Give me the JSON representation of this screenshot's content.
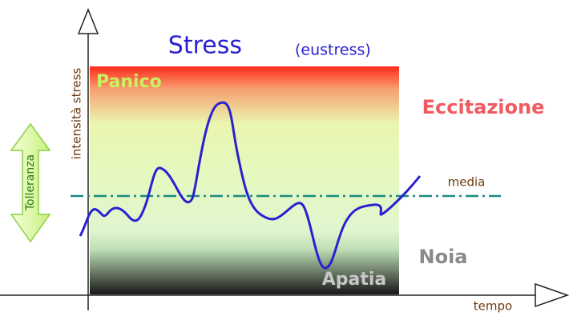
{
  "title": "Stress",
  "subtitle": "(eustress)",
  "y_axis_label": "intensità stress",
  "x_axis_label": "tempo",
  "tolerance_label": "Tolleranza",
  "zones": {
    "top_inside": "Panico",
    "top_outside": "Eccitazione",
    "bottom_outside": "Noia",
    "bottom_inside": "Apatia"
  },
  "mean_label": "media"
}
